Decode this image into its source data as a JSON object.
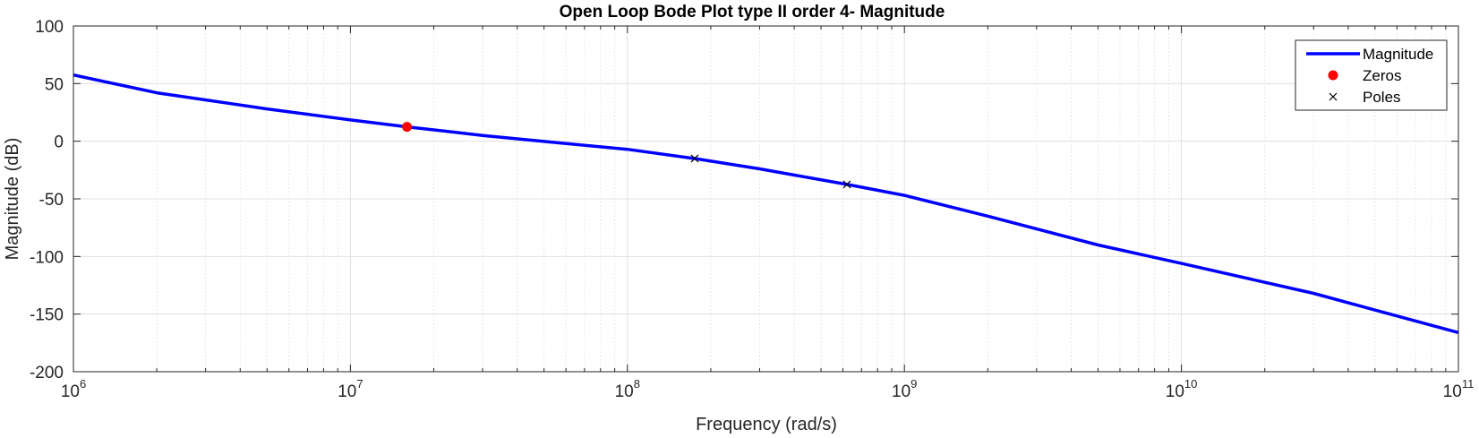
{
  "chart_data": {
    "type": "line",
    "title": "Open Loop Bode Plot type II order 4- Magnitude",
    "xlabel": "Frequency (rad/s)",
    "ylabel": "Magnitude (dB)",
    "xscale": "log",
    "xlim": [
      1000000,
      100000000000
    ],
    "ylim": [
      -200,
      100
    ],
    "grid": true,
    "minor_grid": true,
    "legend_position": "top-right",
    "x_ticks": [
      {
        "base": "10",
        "exp": "6",
        "value": 1000000
      },
      {
        "base": "10",
        "exp": "7",
        "value": 10000000
      },
      {
        "base": "10",
        "exp": "8",
        "value": 100000000
      },
      {
        "base": "10",
        "exp": "9",
        "value": 1000000000
      },
      {
        "base": "10",
        "exp": "10",
        "value": 10000000000
      },
      {
        "base": "10",
        "exp": "11",
        "value": 100000000000
      }
    ],
    "y_ticks": [
      "100",
      "50",
      "0",
      "-50",
      "-100",
      "-150",
      "-200"
    ],
    "series": [
      {
        "name": "Magnitude",
        "kind": "line",
        "color": "#0000ff",
        "x": [
          1000000,
          2000000,
          5000000,
          10000000,
          16000000,
          30000000,
          60000000,
          100000000,
          175000000,
          300000000,
          620000000,
          1000000000,
          2000000000,
          5000000000,
          10000000000,
          30000000000,
          100000000000
        ],
        "y": [
          57.5,
          42,
          28,
          18.5,
          12.5,
          5,
          -2,
          -7,
          -15,
          -24,
          -37.5,
          -47,
          -65,
          -90,
          -106,
          -132,
          -166
        ]
      },
      {
        "name": "Zeros",
        "kind": "marker-dot",
        "color": "#ff0000",
        "x": [
          16000000
        ],
        "y": [
          12.5
        ]
      },
      {
        "name": "Poles",
        "kind": "marker-x",
        "color": "#000000",
        "x": [
          175000000,
          620000000
        ],
        "y": [
          -15,
          -37.5
        ]
      }
    ]
  }
}
